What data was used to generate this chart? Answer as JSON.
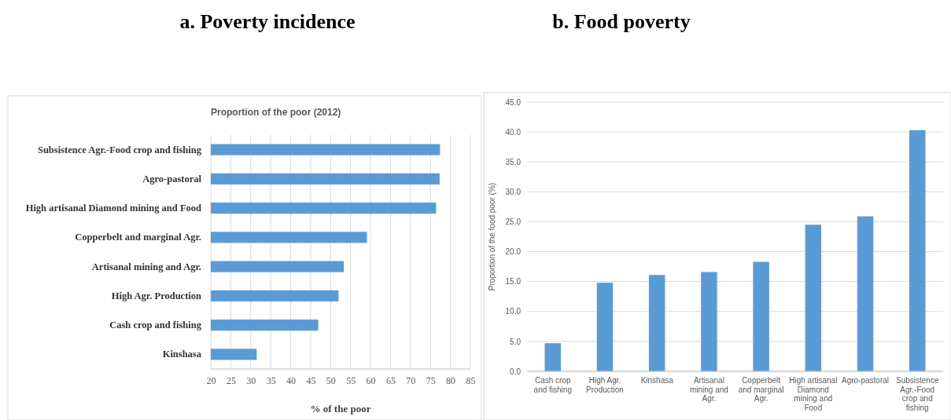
{
  "chart_data": [
    {
      "type": "bar",
      "title": "a. Poverty incidence",
      "subtitle": "Proportion of the poor (2012)",
      "xlabel": "% of the poor",
      "orientation": "horizontal",
      "categories": [
        "Subsistence Agr.-Food crop and fishing",
        "Agro-pastoral",
        "High artisanal Diamond mining and Food",
        "Copperbelt and marginal Agr.",
        "Artisanal mining and Agr.",
        "High Agr. Production",
        "Cash crop and fishing",
        "Kinshasa"
      ],
      "values": [
        77.4,
        77.3,
        76.4,
        59.1,
        53.3,
        52.0,
        46.9,
        31.5
      ],
      "color": "#5b9bd5",
      "xlim": [
        20,
        85
      ],
      "xticks": [
        20,
        25,
        30,
        35,
        40,
        45,
        50,
        55,
        60,
        65,
        70,
        75,
        80,
        85
      ],
      "grid": "x"
    },
    {
      "type": "bar",
      "title": "b. Food poverty",
      "ylabel": "Proportion of the food poor (%)",
      "categories": [
        "Cash crop and fishing",
        "High Agr. Production",
        "Kinshasa",
        "Artisanal mining and Agr.",
        "Copperbelt and marginal Agr.",
        "High artisanal Diamond mining and Food",
        "Agro-pastoral",
        "Subsistence Agr.-Food crop and fishing"
      ],
      "values": [
        4.7,
        14.8,
        16.1,
        16.6,
        18.3,
        24.5,
        25.9,
        40.3
      ],
      "color": "#5b9bd5",
      "ylim": [
        0,
        45
      ],
      "yticks": [
        {
          "value": 0,
          "label": "0.0"
        },
        {
          "value": 5,
          "label": "5.0"
        },
        {
          "value": 10,
          "label": "10.0"
        },
        {
          "value": 15,
          "label": "15.0"
        },
        {
          "value": 20,
          "label": "20.0"
        },
        {
          "value": 25,
          "label": "25.0"
        },
        {
          "value": 30,
          "label": "30.0"
        },
        {
          "value": 35,
          "label": "35.0"
        },
        {
          "value": 40,
          "label": "40.0"
        },
        {
          "value": 45,
          "label": "45.0"
        }
      ],
      "grid": "y"
    }
  ]
}
